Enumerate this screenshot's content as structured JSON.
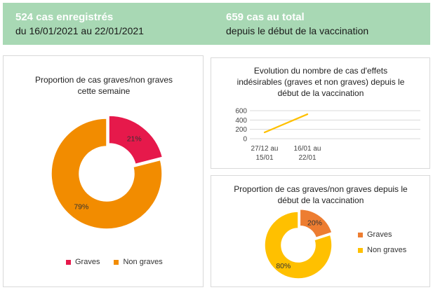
{
  "banner": {
    "stat1": {
      "value": "524 cas enregistrés",
      "detail": "du 16/01/2021 au 22/01/2021"
    },
    "stat2": {
      "value": "659 cas au total",
      "detail": "depuis le début de la vaccination"
    }
  },
  "colors": {
    "banner_bg": "#a8d8b4",
    "graves_week": "#e6194b",
    "non_graves_week": "#f28c00",
    "line": "#ffc000",
    "graves_total": "#ed7d31",
    "non_graves_total": "#ffc000"
  },
  "chart_data": [
    {
      "type": "pie",
      "variant": "donut",
      "title": "Proportion de cas graves/non graves cette semaine",
      "categories": [
        "Graves",
        "Non graves"
      ],
      "values": [
        21,
        79
      ],
      "labels": [
        "21%",
        "79%"
      ],
      "legend": "bottom"
    },
    {
      "type": "line",
      "title": "Evolution du nombre de cas d'effets indésirables (graves et non graves) depuis le début de la vaccination",
      "categories": [
        "27/12 au 15/01",
        "16/01 au 22/01"
      ],
      "series": [
        {
          "values": [
            135,
            524
          ]
        }
      ],
      "ylim": [
        0,
        600
      ],
      "yticks": [
        "0",
        "200",
        "400",
        "600"
      ],
      "grid": true
    },
    {
      "type": "pie",
      "variant": "donut",
      "title": "Proportion de cas graves/non graves depuis le début de la vaccination",
      "categories": [
        "Graves",
        "Non graves"
      ],
      "values": [
        20,
        80
      ],
      "labels": [
        "20%",
        "80%"
      ],
      "legend": "right"
    }
  ]
}
